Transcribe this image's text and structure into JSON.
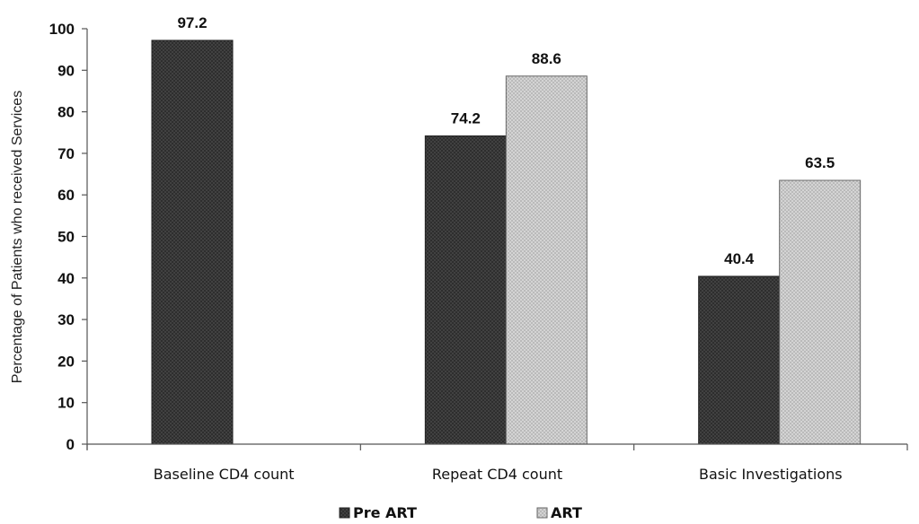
{
  "chart_data": {
    "type": "bar",
    "title": "",
    "xlabel": "",
    "ylabel": "Percentage of Patients who received Services",
    "ylim": [
      0,
      100
    ],
    "yticks": [
      0,
      10,
      20,
      30,
      40,
      50,
      60,
      70,
      80,
      90,
      100
    ],
    "categories": [
      "Baseline CD4 count",
      "Repeat CD4 count",
      "Basic Investigations"
    ],
    "series": [
      {
        "name": "Pre ART",
        "values": [
          97.2,
          74.2,
          40.4
        ],
        "color": "#3d3d3d"
      },
      {
        "name": "ART",
        "values": [
          null,
          88.6,
          63.5
        ],
        "color": "#d4d4d4"
      }
    ],
    "data_labels": true,
    "legend_position": "bottom",
    "grid": false
  }
}
